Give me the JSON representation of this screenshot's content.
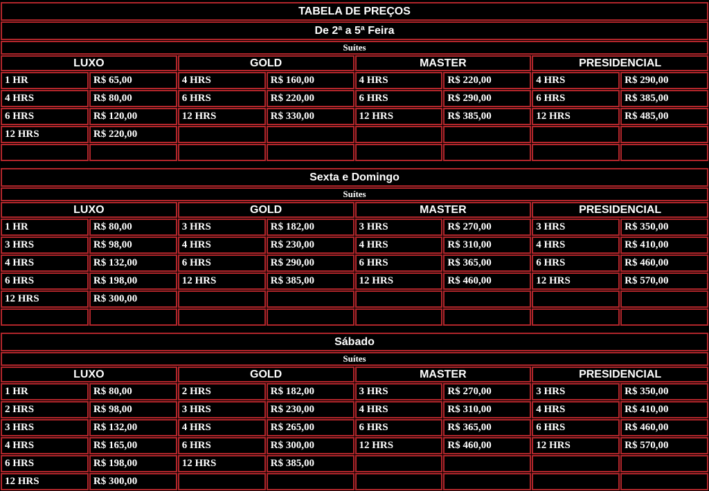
{
  "title": "TABELA DE PREÇOS",
  "suites_label": "Suítes",
  "columns": [
    "LUXO",
    "GOLD",
    "MASTER",
    "PRESIDENCIAL"
  ],
  "colors": {
    "border": "#b2262b",
    "background": "#000000",
    "text": "#ffffff"
  },
  "sections": [
    {
      "day": "De 2ª a 5ª Feira",
      "rows": [
        [
          "1 HR",
          "R$ 65,00",
          "4 HRS",
          "R$ 160,00",
          "4 HRS",
          "R$ 220,00",
          "4 HRS",
          "R$ 290,00"
        ],
        [
          "4 HRS",
          "R$ 80,00",
          "6 HRS",
          "R$ 220,00",
          "6 HRS",
          "R$ 290,00",
          "6 HRS",
          "R$ 385,00"
        ],
        [
          "6 HRS",
          "R$ 120,00",
          "12 HRS",
          "R$ 330,00",
          "12 HRS",
          "R$ 385,00",
          "12 HRS",
          "R$ 485,00"
        ],
        [
          "12 HRS",
          "R$ 220,00",
          "",
          "",
          "",
          "",
          "",
          ""
        ],
        [
          "",
          "",
          "",
          "",
          "",
          "",
          "",
          ""
        ]
      ]
    },
    {
      "day": "Sexta e Domingo",
      "rows": [
        [
          "1 HR",
          "R$ 80,00",
          "3 HRS",
          "R$ 182,00",
          "3 HRS",
          "R$ 270,00",
          "3 HRS",
          "R$ 350,00"
        ],
        [
          "3 HRS",
          "R$ 98,00",
          "4 HRS",
          "R$ 230,00",
          "4 HRS",
          "R$ 310,00",
          "4 HRS",
          "R$ 410,00"
        ],
        [
          "4 HRS",
          "R$ 132,00",
          "6 HRS",
          "R$ 290,00",
          "6 HRS",
          "R$ 365,00",
          "6 HRS",
          "R$ 460,00"
        ],
        [
          "6 HRS",
          "R$ 198,00",
          "12 HRS",
          "R$ 385,00",
          "12 HRS",
          "R$ 460,00",
          "12 HRS",
          "R$ 570,00"
        ],
        [
          "12 HRS",
          "R$ 300,00",
          "",
          "",
          "",
          "",
          "",
          ""
        ],
        [
          "",
          "",
          "",
          "",
          "",
          "",
          "",
          ""
        ]
      ]
    },
    {
      "day": "Sábado",
      "rows": [
        [
          "1 HR",
          "R$ 80,00",
          "2 HRS",
          "R$ 182,00",
          "3 HRS",
          "R$ 270,00",
          "3 HRS",
          "R$ 350,00"
        ],
        [
          "2 HRS",
          "R$ 98,00",
          "3 HRS",
          "R$ 230,00",
          "4 HRS",
          "R$ 310,00",
          "4 HRS",
          "R$ 410,00"
        ],
        [
          "3 HRS",
          "R$ 132,00",
          "4 HRS",
          "R$ 265,00",
          "6 HRS",
          "R$ 365,00",
          "6 HRS",
          "R$ 460,00"
        ],
        [
          "4 HRS",
          "R$ 165,00",
          "6 HRS",
          "R$ 300,00",
          "12 HRS",
          "R$ 460,00",
          "12 HRS",
          "R$ 570,00"
        ],
        [
          "6 HRS",
          "R$ 198,00",
          "12 HRS",
          "R$ 385,00",
          "",
          "",
          "",
          ""
        ],
        [
          "12 HRS",
          "R$ 300,00",
          "",
          "",
          "",
          "",
          "",
          ""
        ]
      ]
    }
  ]
}
